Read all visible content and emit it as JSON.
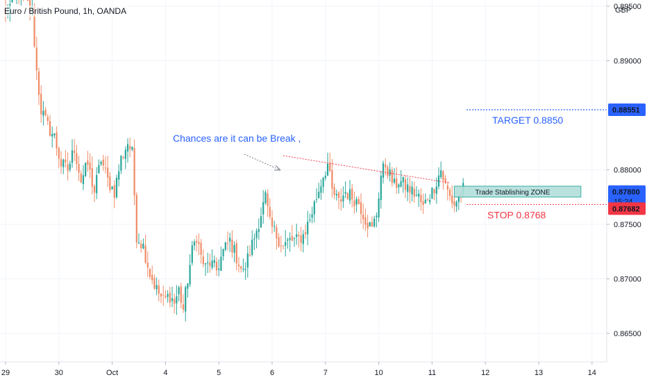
{
  "header": {
    "symbol_title": "Euro / British Pound, 1h, OANDA",
    "currency": "GBP"
  },
  "price_badges": {
    "target": "0.88551",
    "last": "0.87800",
    "countdown": "15:24",
    "stop": "0.87682"
  },
  "annotations": {
    "break_note": "Chances are it can be Break ,",
    "target_label": "TARGET 0.8850",
    "stop_label": "STOP 0.8768",
    "zone_label": "Trade Stablishing ZONE"
  },
  "colors": {
    "up": "#26a69a",
    "down": "#ef8a65",
    "target": "#2962ff",
    "stop": "#f23645",
    "trend": "#f23645",
    "zone_fill": "#b2dfdb",
    "zone_border": "#26a69a"
  },
  "chart_data": {
    "type": "candlestick",
    "title": "Euro / British Pound, 1h, OANDA",
    "x_ticks": [
      {
        "label": "29",
        "t": 0
      },
      {
        "label": "30",
        "t": 24
      },
      {
        "label": "Oct",
        "t": 48
      },
      {
        "label": "4",
        "t": 72
      },
      {
        "label": "5",
        "t": 96
      },
      {
        "label": "6",
        "t": 120
      },
      {
        "label": "7",
        "t": 144
      },
      {
        "label": "10",
        "t": 168
      },
      {
        "label": "11",
        "t": 192
      },
      {
        "label": "12",
        "t": 216
      },
      {
        "label": "13",
        "t": 240
      },
      {
        "label": "14",
        "t": 264
      }
    ],
    "y_ticks": [
      "0.89500",
      "0.89000",
      "0.88000",
      "0.87500",
      "0.87000",
      "0.86500"
    ],
    "ylim": [
      0.8638,
      0.8969
    ],
    "levels": {
      "target": 0.88551,
      "last": 0.878,
      "stop": 0.87682
    },
    "trendline": [
      {
        "t": 125,
        "price": 0.8813
      },
      {
        "t": 200,
        "price": 0.8788
      }
    ],
    "zone": {
      "t_start": 202,
      "t_end": 259,
      "top": 0.8785,
      "bottom": 0.8775
    },
    "anchors": [
      [
        0,
        0.894
      ],
      [
        3,
        0.8955
      ],
      [
        6,
        0.8965
      ],
      [
        9,
        0.8955
      ],
      [
        12,
        0.8945
      ],
      [
        14,
        0.889
      ],
      [
        16,
        0.8855
      ],
      [
        19,
        0.884
      ],
      [
        22,
        0.883
      ],
      [
        25,
        0.8805
      ],
      [
        28,
        0.88
      ],
      [
        31,
        0.882
      ],
      [
        34,
        0.879
      ],
      [
        37,
        0.8805
      ],
      [
        40,
        0.878
      ],
      [
        43,
        0.881
      ],
      [
        46,
        0.879
      ],
      [
        49,
        0.878
      ],
      [
        52,
        0.881
      ],
      [
        55,
        0.8825
      ],
      [
        57,
        0.8815
      ],
      [
        59,
        0.874
      ],
      [
        62,
        0.873
      ],
      [
        65,
        0.8705
      ],
      [
        68,
        0.869
      ],
      [
        71,
        0.868
      ],
      [
        74,
        0.8685
      ],
      [
        76,
        0.8678
      ],
      [
        78,
        0.869
      ],
      [
        80,
        0.8672
      ],
      [
        82,
        0.87
      ],
      [
        84,
        0.8725
      ],
      [
        86,
        0.874
      ],
      [
        88,
        0.872
      ],
      [
        90,
        0.871
      ],
      [
        92,
        0.8715
      ],
      [
        95,
        0.8708
      ],
      [
        98,
        0.8725
      ],
      [
        101,
        0.8735
      ],
      [
        104,
        0.872
      ],
      [
        107,
        0.8705
      ],
      [
        110,
        0.8725
      ],
      [
        113,
        0.8745
      ],
      [
        115,
        0.876
      ],
      [
        117,
        0.8775
      ],
      [
        119,
        0.875
      ],
      [
        122,
        0.874
      ],
      [
        125,
        0.873
      ],
      [
        128,
        0.8735
      ],
      [
        131,
        0.8735
      ],
      [
        134,
        0.874
      ],
      [
        137,
        0.8755
      ],
      [
        140,
        0.8775
      ],
      [
        143,
        0.8795
      ],
      [
        145,
        0.8805
      ],
      [
        147,
        0.878
      ],
      [
        150,
        0.877
      ],
      [
        153,
        0.878
      ],
      [
        156,
        0.8775
      ],
      [
        159,
        0.877
      ],
      [
        162,
        0.8755
      ],
      [
        165,
        0.8745
      ],
      [
        167,
        0.876
      ],
      [
        169,
        0.8795
      ],
      [
        171,
        0.8805
      ],
      [
        173,
        0.8795
      ],
      [
        175,
        0.8785
      ],
      [
        177,
        0.879
      ],
      [
        180,
        0.8785
      ],
      [
        183,
        0.878
      ],
      [
        186,
        0.8775
      ],
      [
        188,
        0.8765
      ],
      [
        190,
        0.8775
      ],
      [
        192,
        0.878
      ],
      [
        194,
        0.879
      ],
      [
        196,
        0.88
      ],
      [
        198,
        0.8785
      ],
      [
        200,
        0.8775
      ],
      [
        202,
        0.8768
      ],
      [
        204,
        0.8775
      ],
      [
        206,
        0.8782
      ]
    ]
  }
}
